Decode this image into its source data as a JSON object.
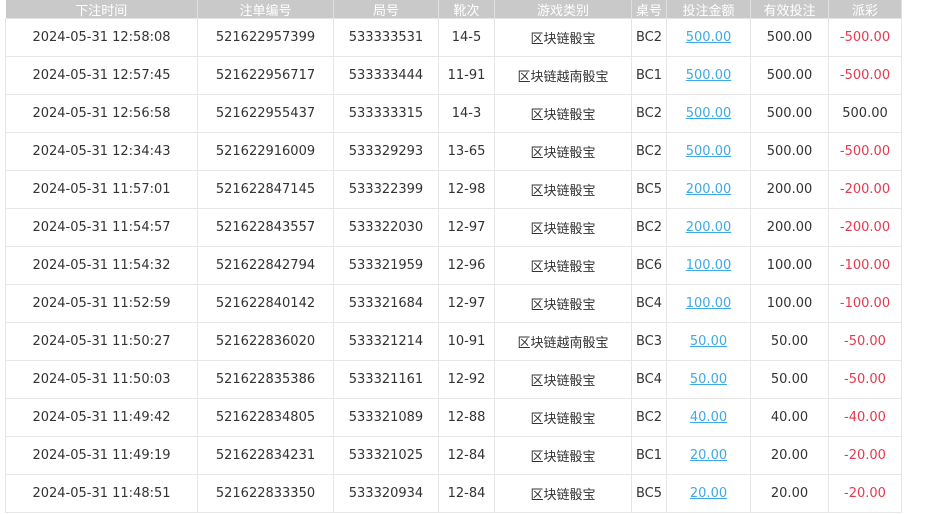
{
  "headers": [
    "下注时间",
    "注单编号",
    "局号",
    "靴次",
    "游戏类别",
    "桌号",
    "投注金额",
    "有效投注",
    "派彩"
  ],
  "rows": [
    [
      "2024-05-31 12:58:08",
      "521622957399",
      "533333531",
      "14-5",
      "区块链骰宝",
      "BC2",
      "500.00",
      "500.00",
      "-500.00"
    ],
    [
      "2024-05-31 12:57:45",
      "521622956717",
      "533333444",
      "11-91",
      "区块链越南骰宝",
      "BC1",
      "500.00",
      "500.00",
      "-500.00"
    ],
    [
      "2024-05-31 12:56:58",
      "521622955437",
      "533333315",
      "14-3",
      "区块链骰宝",
      "BC2",
      "500.00",
      "500.00",
      "500.00"
    ],
    [
      "2024-05-31 12:34:43",
      "521622916009",
      "533329293",
      "13-65",
      "区块链骰宝",
      "BC2",
      "500.00",
      "500.00",
      "-500.00"
    ],
    [
      "2024-05-31 11:57:01",
      "521622847145",
      "533322399",
      "12-98",
      "区块链骰宝",
      "BC5",
      "200.00",
      "200.00",
      "-200.00"
    ],
    [
      "2024-05-31 11:54:57",
      "521622843557",
      "533322030",
      "12-97",
      "区块链骰宝",
      "BC2",
      "200.00",
      "200.00",
      "-200.00"
    ],
    [
      "2024-05-31 11:54:32",
      "521622842794",
      "533321959",
      "12-96",
      "区块链骰宝",
      "BC6",
      "100.00",
      "100.00",
      "-100.00"
    ],
    [
      "2024-05-31 11:52:59",
      "521622840142",
      "533321684",
      "12-97",
      "区块链骰宝",
      "BC4",
      "100.00",
      "100.00",
      "-100.00"
    ],
    [
      "2024-05-31 11:50:27",
      "521622836020",
      "533321214",
      "10-91",
      "区块链越南骰宝",
      "BC3",
      "50.00",
      "50.00",
      "-50.00"
    ],
    [
      "2024-05-31 11:50:03",
      "521622835386",
      "533321161",
      "12-92",
      "区块链骰宝",
      "BC4",
      "50.00",
      "50.00",
      "-50.00"
    ],
    [
      "2024-05-31 11:49:42",
      "521622834805",
      "533321089",
      "12-88",
      "区块链骰宝",
      "BC2",
      "40.00",
      "40.00",
      "-40.00"
    ],
    [
      "2024-05-31 11:49:19",
      "521622834231",
      "533321025",
      "12-84",
      "区块链骰宝",
      "BC1",
      "20.00",
      "20.00",
      "-20.00"
    ],
    [
      "2024-05-31 11:48:51",
      "521622833350",
      "533320934",
      "12-84",
      "区块链骰宝",
      "BC5",
      "20.00",
      "20.00",
      "-20.00"
    ]
  ],
  "colors": {
    "header_bg": "#c9c9c9",
    "link": "#3fa9e5",
    "negative": "#e5394f"
  }
}
